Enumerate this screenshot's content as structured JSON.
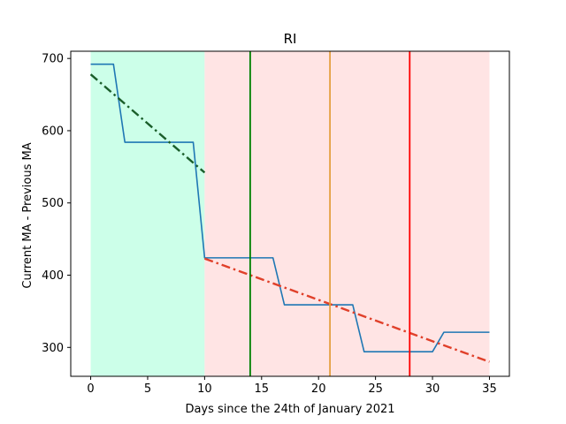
{
  "chart_data": {
    "type": "line",
    "title": "RI",
    "xlabel": "Days since the 24th of January 2021",
    "ylabel": "Current MA - Previous MA",
    "xlim": [
      -1.75,
      36.75
    ],
    "ylim": [
      260,
      710
    ],
    "xticks": [
      0,
      5,
      10,
      15,
      20,
      25,
      30,
      35
    ],
    "yticks": [
      300,
      400,
      500,
      600,
      700
    ],
    "grid": false,
    "shaded_regions": [
      {
        "x0": 0,
        "x1": 10,
        "color": "#ccffe9"
      },
      {
        "x0": 10,
        "x1": 35,
        "color": "#ffe4e4"
      }
    ],
    "vertical_lines": [
      {
        "x": 14,
        "color": "#008000"
      },
      {
        "x": 21,
        "color": "#e5a040"
      },
      {
        "x": 28,
        "color": "#ff0000"
      }
    ],
    "series": [
      {
        "style": "solid",
        "color": "#1f77b4",
        "x": [
          0,
          2,
          3,
          9,
          10,
          16,
          17,
          23,
          24,
          30,
          31,
          35
        ],
        "y": [
          692,
          692,
          584,
          584,
          424,
          424,
          359,
          359,
          294,
          294,
          321,
          321
        ]
      },
      {
        "style": "dashdot",
        "color": "#1a5e2a",
        "x": [
          0,
          10
        ],
        "y": [
          678,
          542
        ]
      },
      {
        "style": "dashdot",
        "color": "#e0402a",
        "x": [
          10,
          35
        ],
        "y": [
          423,
          280
        ]
      }
    ]
  }
}
